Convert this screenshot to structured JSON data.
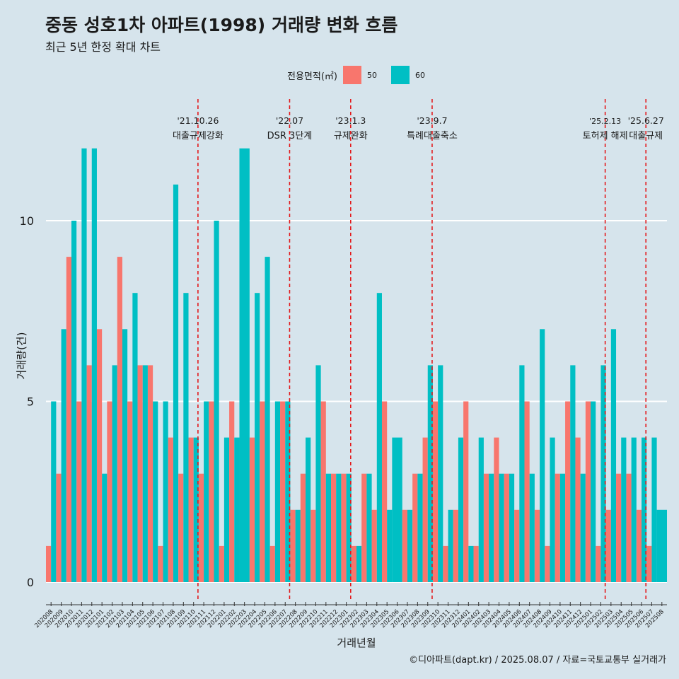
{
  "title": "중동 성호1차 아파트(1998) 거래량 변화 흐름",
  "subtitle": "최근 5년 한정 확대 차트",
  "caption": "©디아파트(dapt.kr) / 2025.08.07 / 자료=국토교통부 실거래가",
  "chart_data": {
    "type": "bar",
    "title": "중동 성호1차 아파트(1998) 거래량 변화 흐름",
    "subtitle": "최근 5년 한정 확대 차트",
    "xlabel": "거래년월",
    "ylabel": "거래량(건)",
    "ylim": [
      -0.5,
      12
    ],
    "yticks": [
      0,
      5,
      10
    ],
    "grid": "horizontal",
    "legend": {
      "title": "전용면적(㎡)",
      "position": "top"
    },
    "categories": [
      "202008",
      "202009",
      "202010",
      "202011",
      "202012",
      "202101",
      "202102",
      "202103",
      "202104",
      "202105",
      "202106",
      "202107",
      "202108",
      "202109",
      "202110",
      "202111",
      "202112",
      "202201",
      "202202",
      "202203",
      "202204",
      "202205",
      "202206",
      "202207",
      "202208",
      "202209",
      "202210",
      "202211",
      "202212",
      "202301",
      "202302",
      "202303",
      "202304",
      "202305",
      "202306",
      "202307",
      "202308",
      "202309",
      "202310",
      "202311",
      "202312",
      "202401",
      "202402",
      "202403",
      "202404",
      "202405",
      "202406",
      "202407",
      "202408",
      "202409",
      "202410",
      "202411",
      "202412",
      "202501",
      "202502",
      "202503",
      "202504",
      "202505",
      "202506",
      "202507",
      "202508"
    ],
    "series": [
      {
        "name": "50",
        "color": "#f8766d",
        "values": [
          1,
          3,
          9,
          5,
          6,
          7,
          5,
          9,
          5,
          6,
          6,
          1,
          4,
          3,
          4,
          3,
          5,
          1,
          5,
          null,
          4,
          5,
          1,
          5,
          2,
          3,
          2,
          5,
          3,
          3,
          1,
          3,
          2,
          5,
          null,
          2,
          3,
          4,
          5,
          1,
          2,
          5,
          1,
          3,
          4,
          3,
          2,
          5,
          2,
          1,
          3,
          5,
          4,
          5,
          1,
          2,
          3,
          3,
          2,
          1,
          null
        ]
      },
      {
        "name": "60",
        "color": "#00bfc4",
        "values": [
          5,
          7,
          10,
          12,
          12,
          3,
          6,
          7,
          8,
          6,
          5,
          5,
          11,
          8,
          4,
          5,
          10,
          4,
          4,
          12,
          8,
          9,
          5,
          5,
          2,
          4,
          6,
          3,
          3,
          3,
          1,
          3,
          8,
          2,
          4,
          2,
          3,
          6,
          6,
          2,
          4,
          1,
          4,
          3,
          3,
          3,
          6,
          3,
          7,
          4,
          3,
          6,
          3,
          5,
          6,
          7,
          4,
          4,
          4,
          4,
          2
        ]
      }
    ],
    "single_bar_months": [
      "202203",
      "202306",
      "202508"
    ],
    "events": [
      {
        "after": "202110",
        "date": "'21.10.26",
        "label": "대출규제강화"
      },
      {
        "after": "202207",
        "date": "'22.07",
        "label": "DSR 3단계"
      },
      {
        "after": "202301",
        "date": "'23.1.3",
        "label": "규제완화"
      },
      {
        "after": "202309",
        "date": "'23.9.7",
        "label": "특례대출축소"
      },
      {
        "after": "202502",
        "date": "'25.2.13",
        "label": "토허제 해제"
      },
      {
        "after": "202506",
        "date": "'25.6.27",
        "label": "대출규제"
      }
    ]
  }
}
